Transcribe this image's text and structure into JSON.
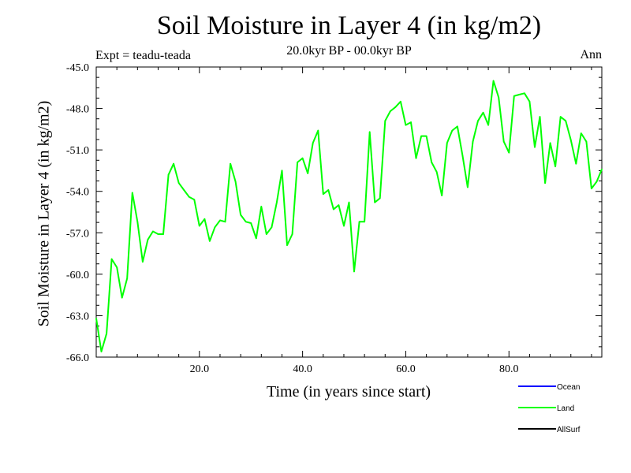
{
  "chart_data": {
    "type": "line",
    "title": "Soil Moisture in Layer 4 (in kg/m2)",
    "subtitle": "20.0kyr BP - 00.0kyr BP",
    "experiment": "Expt = teadu-teada",
    "season": "Ann",
    "xlabel": "Time (in years since start)",
    "ylabel": "Soil Moisture in Layer 4 (in kg/m2)",
    "xlim": [
      0,
      98
    ],
    "ylim": [
      -66.0,
      -45.0
    ],
    "xticks": [
      20,
      40,
      60,
      80
    ],
    "xtick_labels": [
      "20.0",
      "40.0",
      "60.0",
      "80.0"
    ],
    "yticks": [
      -45,
      -48,
      -51,
      -54,
      -57,
      -60,
      -63,
      -66
    ],
    "ytick_labels": [
      "-45.0",
      "-48.0",
      "-51.0",
      "-54.0",
      "-57.0",
      "-60.0",
      "-63.0",
      "-66.0"
    ],
    "legend_position": "bottom-right",
    "series": [
      {
        "name": "Ocean",
        "color": "#0000ff",
        "values": []
      },
      {
        "name": "Land",
        "color": "#00ff00",
        "x": [
          0,
          1,
          2,
          3,
          4,
          5,
          6,
          7,
          8,
          9,
          10,
          11,
          12,
          13,
          14,
          15,
          16,
          17,
          18,
          19,
          20,
          21,
          22,
          23,
          24,
          25,
          26,
          27,
          28,
          29,
          30,
          31,
          32,
          33,
          34,
          35,
          36,
          37,
          38,
          39,
          40,
          41,
          42,
          43,
          44,
          45,
          46,
          47,
          48,
          49,
          50,
          51,
          52,
          53,
          54,
          55,
          56,
          57,
          58,
          59,
          60,
          61,
          62,
          63,
          64,
          65,
          66,
          67,
          68,
          69,
          70,
          71,
          72,
          73,
          74,
          75,
          76,
          77,
          78,
          79,
          80,
          81,
          82,
          83,
          84,
          85,
          86,
          87,
          88,
          89,
          90,
          91,
          92,
          93,
          94,
          95,
          96,
          97,
          98
        ],
        "values": [
          -63.2,
          -65.6,
          -64.3,
          -58.9,
          -59.5,
          -61.7,
          -60.3,
          -54.1,
          -56.2,
          -59.1,
          -57.5,
          -56.9,
          -57.1,
          -57.1,
          -52.8,
          -52.0,
          -53.4,
          -53.9,
          -54.4,
          -54.6,
          -56.5,
          -56.0,
          -57.6,
          -56.6,
          -56.1,
          -56.2,
          -52.0,
          -53.3,
          -55.7,
          -56.2,
          -56.3,
          -57.4,
          -55.1,
          -57.1,
          -56.6,
          -54.8,
          -52.5,
          -57.9,
          -57.1,
          -51.9,
          -51.6,
          -52.7,
          -50.5,
          -49.6,
          -54.2,
          -53.9,
          -55.3,
          -55.0,
          -56.5,
          -54.8,
          -59.8,
          -56.2,
          -56.2,
          -49.7,
          -54.8,
          -54.5,
          -48.9,
          -48.2,
          -47.9,
          -47.5,
          -49.2,
          -49.0,
          -51.6,
          -50.0,
          -50.0,
          -51.9,
          -52.6,
          -54.3,
          -50.5,
          -49.6,
          -49.3,
          -51.4,
          -53.7,
          -50.4,
          -48.9,
          -48.3,
          -49.2,
          -46.0,
          -47.2,
          -50.4,
          -51.2,
          -47.1,
          -47.0,
          -46.9,
          -47.5,
          -50.8,
          -48.6,
          -53.4,
          -50.5,
          -52.2,
          -48.6,
          -48.9,
          -50.3,
          -52.0,
          -49.8,
          -50.4,
          -53.8,
          -53.3,
          -52.4
        ]
      },
      {
        "name": "AllSurf",
        "color": "#000000",
        "values": []
      }
    ]
  }
}
